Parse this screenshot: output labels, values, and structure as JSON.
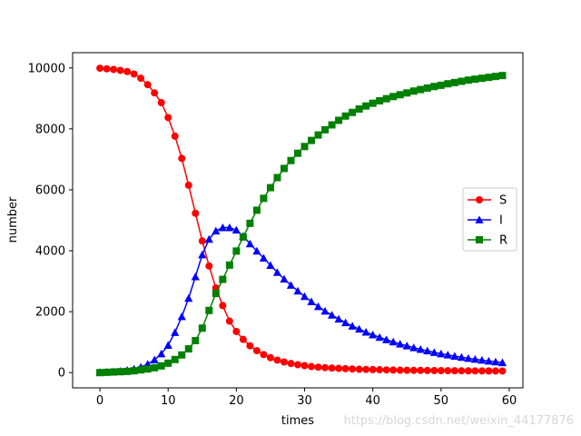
{
  "chart_data": {
    "type": "line",
    "title": "",
    "xlabel": "times",
    "ylabel": "number",
    "xlim": [
      -4,
      62
    ],
    "ylim": [
      -500,
      10500
    ],
    "xticks": [
      0,
      10,
      20,
      30,
      40,
      50,
      60
    ],
    "yticks": [
      0,
      2000,
      4000,
      6000,
      8000,
      10000
    ],
    "grid": false,
    "legend_position": "center-right",
    "x": [
      0,
      1,
      2,
      3,
      4,
      5,
      6,
      7,
      8,
      9,
      10,
      11,
      12,
      13,
      14,
      15,
      16,
      17,
      18,
      19,
      20,
      21,
      22,
      23,
      24,
      25,
      26,
      27,
      28,
      29,
      30,
      31,
      32,
      33,
      34,
      35,
      36,
      37,
      38,
      39,
      40,
      41,
      42,
      43,
      44,
      45,
      46,
      47,
      48,
      49,
      50,
      51,
      52,
      53,
      54,
      55,
      56,
      57,
      58,
      59
    ],
    "series": [
      {
        "name": "S",
        "color": "#ff0000",
        "marker": "circle",
        "values": [
          9990,
          9970,
          9950,
          9920,
          9880,
          9800,
          9660,
          9450,
          9180,
          8860,
          8370,
          7760,
          7030,
          6150,
          5230,
          4320,
          3500,
          2780,
          2200,
          1690,
          1350,
          1090,
          880,
          720,
          590,
          490,
          410,
          350,
          300,
          260,
          230,
          200,
          180,
          165,
          150,
          140,
          130,
          120,
          110,
          105,
          100,
          95,
          90,
          85,
          80,
          78,
          75,
          72,
          70,
          68,
          66,
          64,
          62,
          60,
          58,
          57,
          56,
          55,
          54,
          53
        ]
      },
      {
        "name": "I",
        "color": "#0000ff",
        "marker": "triangle",
        "values": [
          10,
          20,
          30,
          50,
          80,
          120,
          180,
          280,
          420,
          620,
          900,
          1320,
          1840,
          2440,
          3150,
          3870,
          4380,
          4650,
          4760,
          4760,
          4680,
          4480,
          4230,
          3990,
          3760,
          3520,
          3290,
          3070,
          2870,
          2680,
          2500,
          2330,
          2170,
          2020,
          1890,
          1760,
          1640,
          1530,
          1430,
          1330,
          1240,
          1160,
          1080,
          1010,
          940,
          880,
          820,
          765,
          715,
          665,
          620,
          580,
          540,
          505,
          470,
          440,
          410,
          380,
          355,
          330
        ]
      },
      {
        "name": "R",
        "color": "#008000",
        "marker": "square",
        "values": [
          0,
          10,
          20,
          30,
          40,
          60,
          90,
          120,
          160,
          220,
          310,
          430,
          580,
          780,
          1050,
          1460,
          2040,
          2600,
          3060,
          3530,
          3990,
          4450,
          4900,
          5330,
          5720,
          6070,
          6400,
          6700,
          6960,
          7200,
          7420,
          7620,
          7800,
          7970,
          8130,
          8280,
          8420,
          8540,
          8650,
          8750,
          8840,
          8920,
          8990,
          9060,
          9120,
          9180,
          9240,
          9290,
          9340,
          9390,
          9430,
          9480,
          9520,
          9560,
          9600,
          9630,
          9660,
          9690,
          9720,
          9750
        ]
      }
    ]
  },
  "watermark": "https://blog.csdn.net/weixin_44177876"
}
